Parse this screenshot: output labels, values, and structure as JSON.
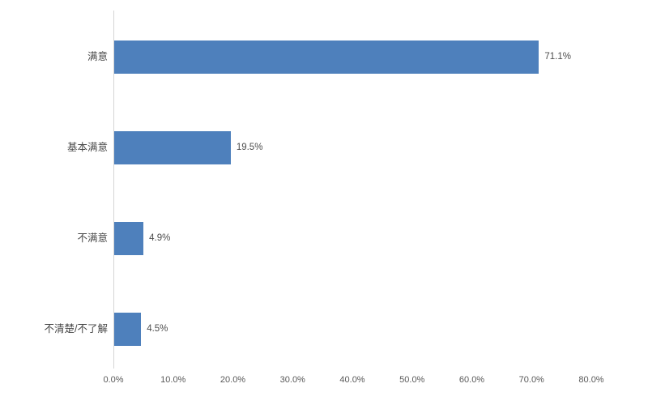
{
  "chart_data": {
    "type": "bar",
    "orientation": "horizontal",
    "title": "",
    "xlabel": "",
    "ylabel": "",
    "categories": [
      "满意",
      "基本满意",
      "不满意",
      "不清楚/不了解"
    ],
    "values": [
      71.1,
      19.5,
      4.9,
      4.5
    ],
    "data_labels": [
      "71.1%",
      "19.5%",
      "4.9%",
      "4.5%"
    ],
    "xlim": [
      0,
      80
    ],
    "x_tick_values": [
      0,
      10,
      20,
      30,
      40,
      50,
      60,
      70,
      80
    ],
    "x_tick_labels": [
      "0.0%",
      "10.0%",
      "20.0%",
      "30.0%",
      "40.0%",
      "50.0%",
      "60.0%",
      "70.0%",
      "80.0%"
    ],
    "grid": false,
    "legend": false,
    "colors": {
      "bar": "#4e80bc",
      "axis_line": "#d6d6d6",
      "category_text": "#494949",
      "data_label_text": "#4d4d4d",
      "tick_text": "#595959",
      "background": "#ffffff"
    }
  }
}
